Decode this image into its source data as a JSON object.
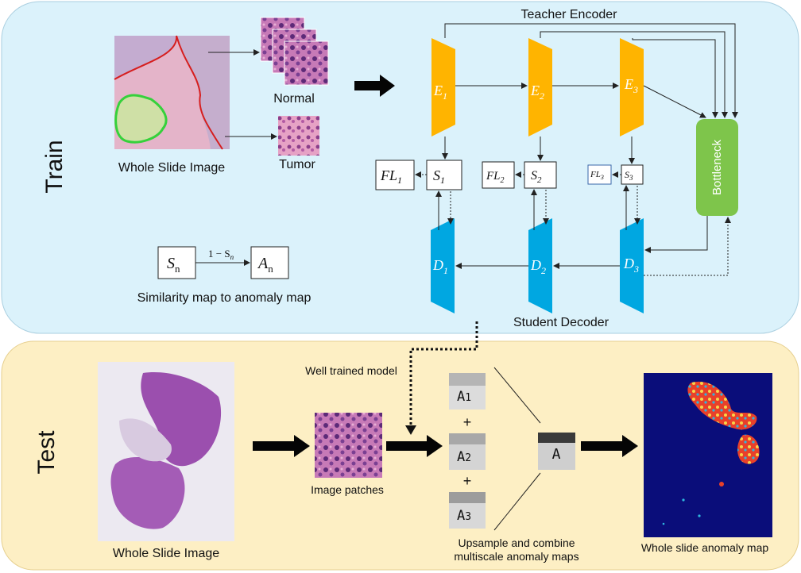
{
  "train": {
    "label": "Train",
    "wsi_caption": "Whole Slide Image",
    "normal_label": "Normal",
    "tumor_label": "Tumor",
    "teacher_label": "Teacher Encoder",
    "student_label": "Student Decoder",
    "bottleneck_label": "Bottleneck",
    "encoders": [
      {
        "sym": "E",
        "sub": "1"
      },
      {
        "sym": "E",
        "sub": "2"
      },
      {
        "sym": "E",
        "sub": "3"
      }
    ],
    "decoders": [
      {
        "sym": "D",
        "sub": "1"
      },
      {
        "sym": "D",
        "sub": "2"
      },
      {
        "sym": "D",
        "sub": "3"
      }
    ],
    "similarity": [
      {
        "sym": "S",
        "sub": "1"
      },
      {
        "sym": "S",
        "sub": "2"
      },
      {
        "sym": "S",
        "sub": "3"
      }
    ],
    "feature_losses": [
      {
        "sym": "FL",
        "sub": "1"
      },
      {
        "sym": "FL",
        "sub": "2"
      },
      {
        "sym": "FL",
        "sub": "3"
      }
    ],
    "map_legend": {
      "from_sym": "S",
      "from_sub": "n",
      "to_sym": "A",
      "to_sub": "n",
      "arrow_formula": "1 − S",
      "arrow_sub": "n",
      "caption": "Similarity map to anomaly map"
    }
  },
  "test": {
    "label": "Test",
    "wsi_caption": "Whole Slide Image",
    "model_label": "Well trained model",
    "patches_caption": "Image patches",
    "maps": [
      {
        "sym": "A",
        "sub": "1"
      },
      {
        "sym": "A",
        "sub": "2"
      },
      {
        "sym": "A",
        "sub": "3"
      }
    ],
    "plus_sign": "+",
    "combined_label": "A",
    "combine_caption_line1": "Upsample and combine",
    "combine_caption_line2": "multiscale anomaly maps",
    "output_caption": "Whole slide anomaly map"
  },
  "colors": {
    "train_bg": "#dbf2fb",
    "test_bg": "#fdefc4",
    "encoder": "#ffb400",
    "decoder": "#00a7e1",
    "bottleneck": "#7ec54b"
  }
}
